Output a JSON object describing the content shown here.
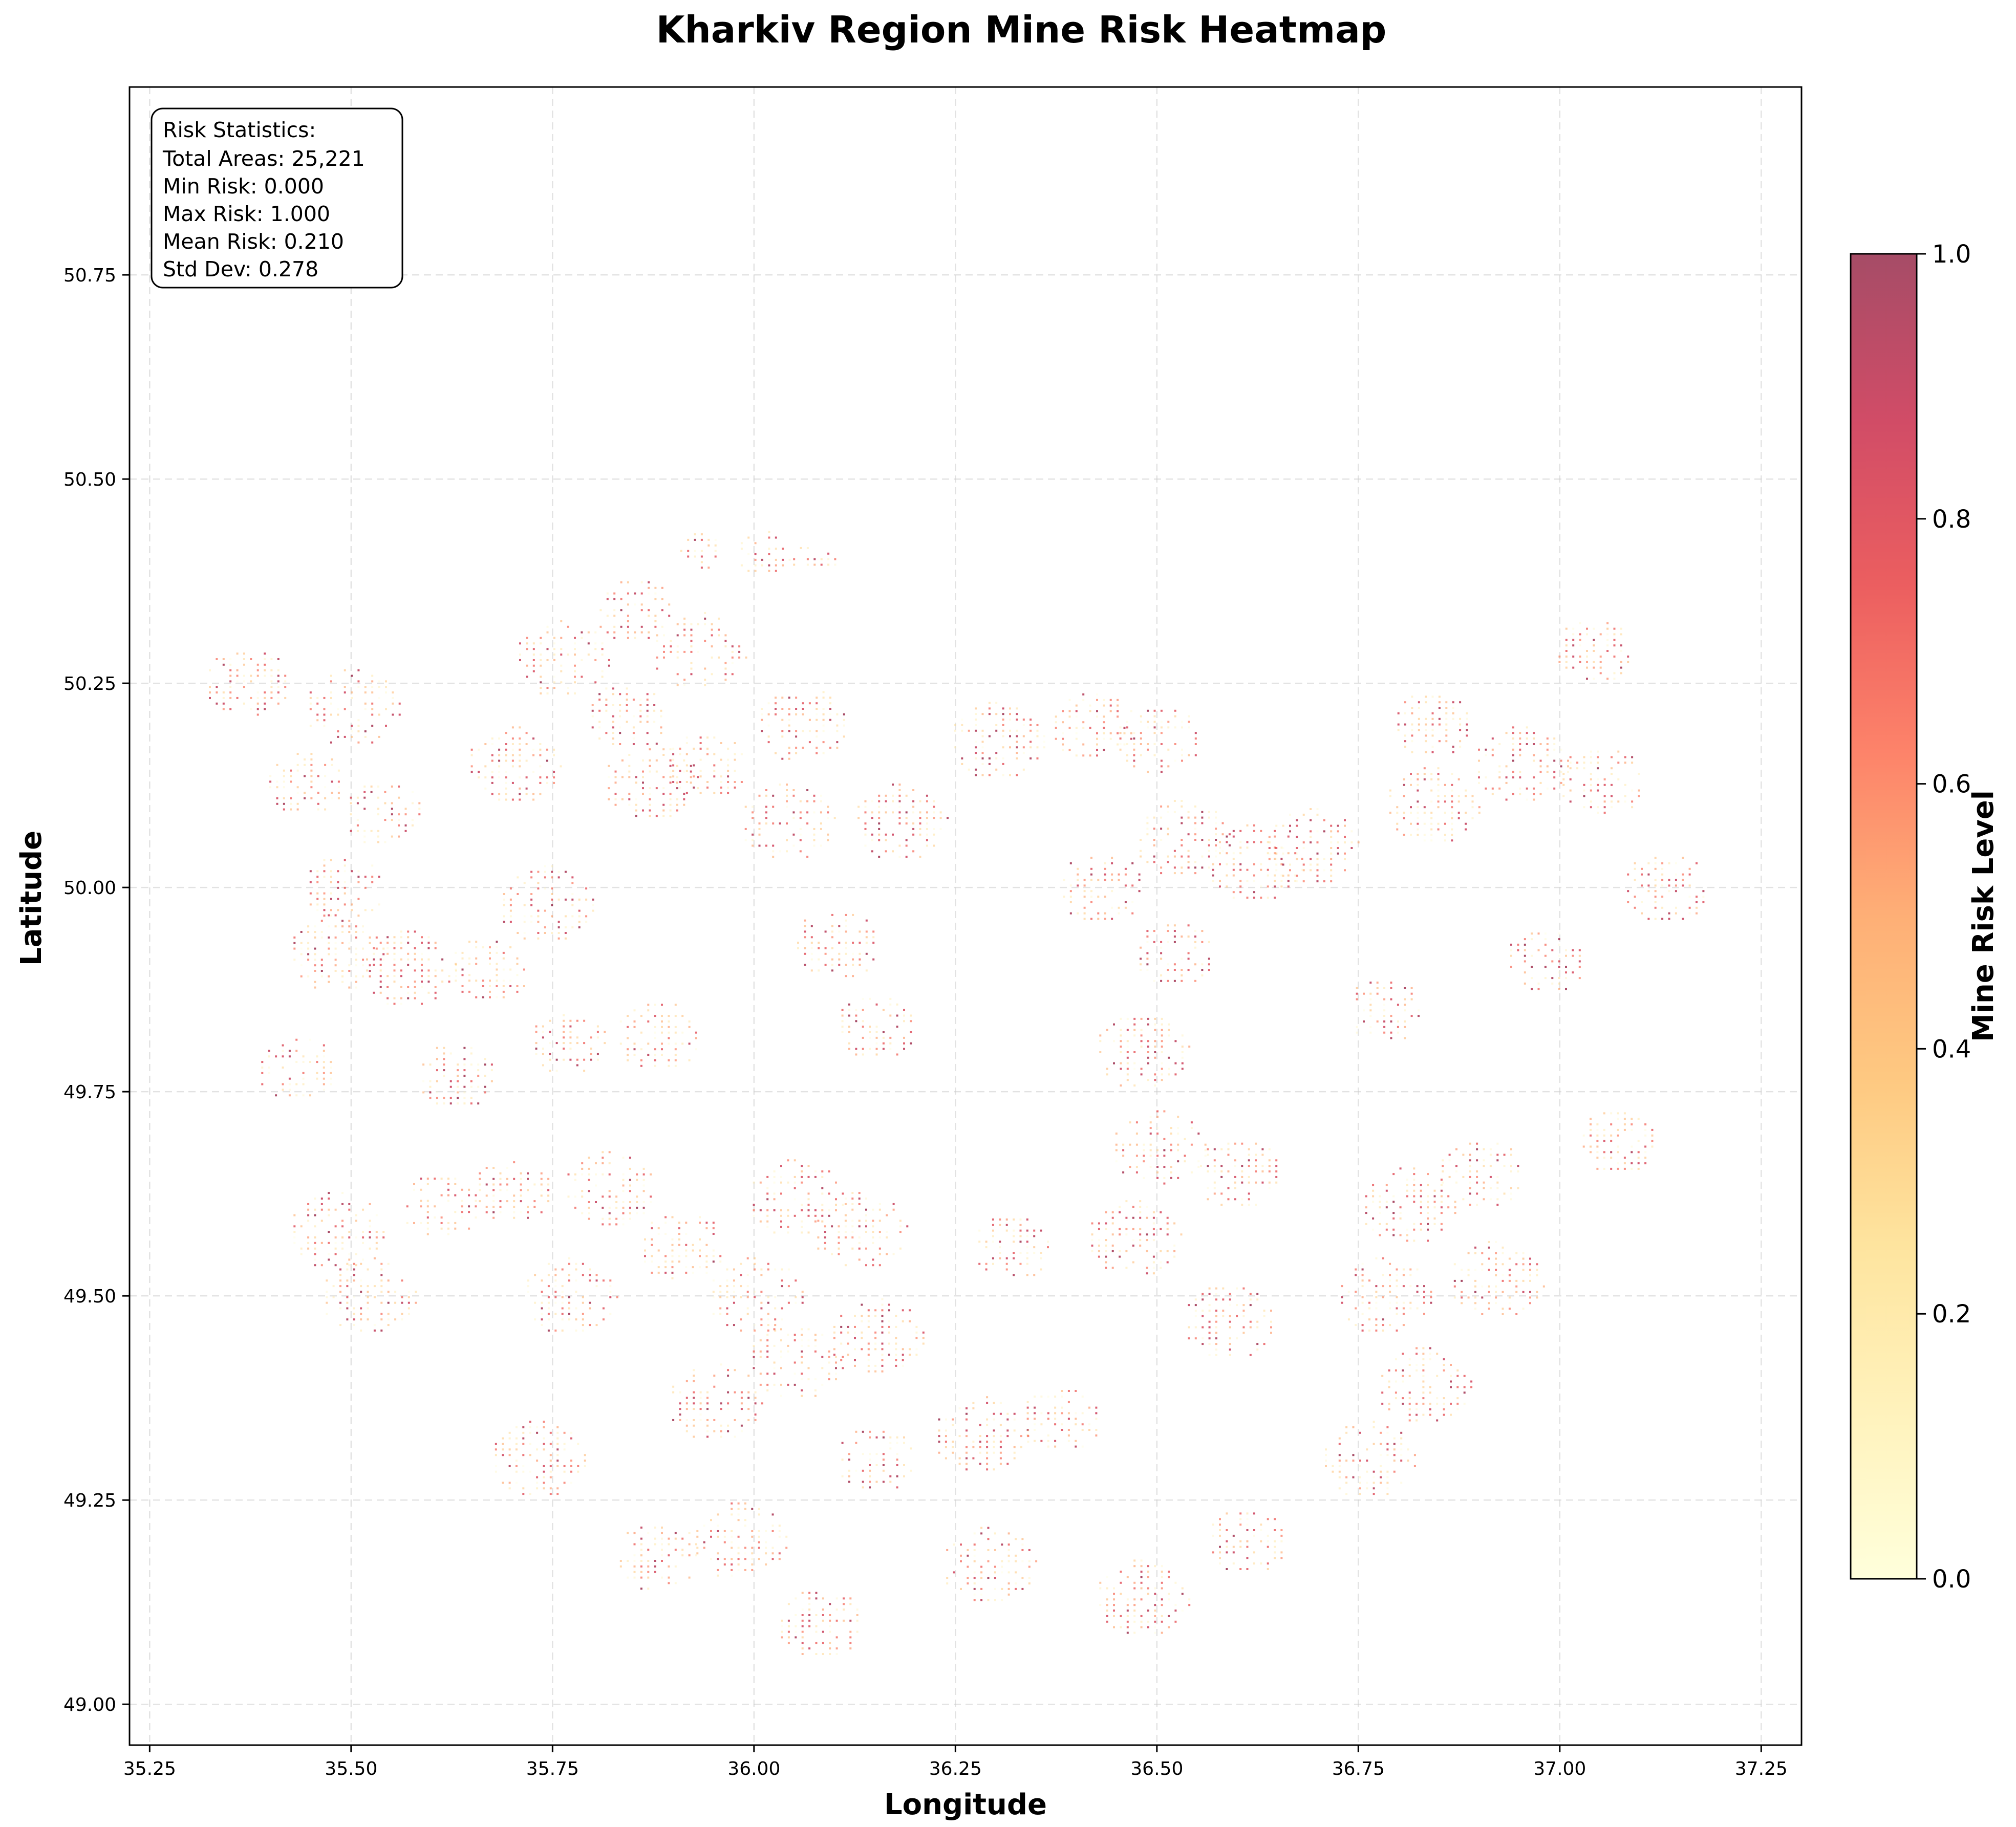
{
  "chart_data": {
    "type": "heatmap",
    "title": "Kharkiv Region Mine Risk Heatmap",
    "xlabel": "Longitude",
    "ylabel": "Latitude",
    "xlim": [
      35.225,
      37.3
    ],
    "ylim": [
      48.95,
      50.98
    ],
    "x_ticks": [
      "35.25",
      "35.50",
      "35.75",
      "36.00",
      "36.25",
      "36.50",
      "36.75",
      "37.00",
      "37.25"
    ],
    "y_ticks": [
      "49.00",
      "49.25",
      "49.50",
      "49.75",
      "50.00",
      "50.25",
      "50.50",
      "50.75"
    ],
    "grid": true,
    "colorbar": {
      "label": "Mine Risk Level",
      "range": [
        0,
        1
      ],
      "ticks": [
        "0.0",
        "0.2",
        "0.4",
        "0.6",
        "0.8",
        "1.0"
      ],
      "colormap": "YlOrRd",
      "colors": [
        "#ffffcc",
        "#ffeda0",
        "#fed976",
        "#feb24c",
        "#fd8d3c",
        "#fc4e2a",
        "#e31a1c",
        "#bd0026",
        "#800026"
      ],
      "alpha": 0.7
    },
    "statistics": {
      "heading": "Risk Statistics:",
      "total_areas": "Total Areas: 25,221",
      "min_risk": "Min Risk: 0.000",
      "max_risk": "Max Risk: 1.000",
      "mean_risk": "Mean Risk: 0.210",
      "std_dev": "Std Dev: 0.278"
    },
    "clusters": [
      {
        "lon": 35.37,
        "lat": 50.25,
        "r": 0.055
      },
      {
        "lon": 35.5,
        "lat": 50.22,
        "r": 0.06
      },
      {
        "lon": 35.44,
        "lat": 50.13,
        "r": 0.05
      },
      {
        "lon": 35.54,
        "lat": 50.09,
        "r": 0.05
      },
      {
        "lon": 35.49,
        "lat": 50.0,
        "r": 0.05
      },
      {
        "lon": 35.48,
        "lat": 49.92,
        "r": 0.06
      },
      {
        "lon": 35.57,
        "lat": 49.9,
        "r": 0.06
      },
      {
        "lon": 35.43,
        "lat": 49.78,
        "r": 0.05
      },
      {
        "lon": 35.63,
        "lat": 49.77,
        "r": 0.05
      },
      {
        "lon": 35.67,
        "lat": 49.9,
        "r": 0.05
      },
      {
        "lon": 35.74,
        "lat": 49.98,
        "r": 0.06
      },
      {
        "lon": 35.77,
        "lat": 49.81,
        "r": 0.05
      },
      {
        "lon": 35.88,
        "lat": 49.82,
        "r": 0.055
      },
      {
        "lon": 35.7,
        "lat": 50.15,
        "r": 0.06
      },
      {
        "lon": 35.76,
        "lat": 50.28,
        "r": 0.06
      },
      {
        "lon": 35.85,
        "lat": 50.34,
        "r": 0.05
      },
      {
        "lon": 35.93,
        "lat": 50.29,
        "r": 0.06
      },
      {
        "lon": 35.87,
        "lat": 50.13,
        "r": 0.06
      },
      {
        "lon": 35.84,
        "lat": 50.21,
        "r": 0.05
      },
      {
        "lon": 35.94,
        "lat": 50.15,
        "r": 0.05
      },
      {
        "lon": 36.06,
        "lat": 50.2,
        "r": 0.06
      },
      {
        "lon": 36.04,
        "lat": 50.08,
        "r": 0.06
      },
      {
        "lon": 36.18,
        "lat": 50.08,
        "r": 0.06
      },
      {
        "lon": 36.1,
        "lat": 49.93,
        "r": 0.055
      },
      {
        "lon": 36.15,
        "lat": 49.83,
        "r": 0.05
      },
      {
        "lon": 36.3,
        "lat": 50.18,
        "r": 0.06
      },
      {
        "lon": 36.42,
        "lat": 50.2,
        "r": 0.055
      },
      {
        "lon": 36.5,
        "lat": 50.18,
        "r": 0.055
      },
      {
        "lon": 36.43,
        "lat": 50.0,
        "r": 0.055
      },
      {
        "lon": 36.53,
        "lat": 50.06,
        "r": 0.06
      },
      {
        "lon": 36.52,
        "lat": 49.92,
        "r": 0.05
      },
      {
        "lon": 36.62,
        "lat": 50.03,
        "r": 0.06
      },
      {
        "lon": 36.69,
        "lat": 50.05,
        "r": 0.06
      },
      {
        "lon": 36.78,
        "lat": 49.85,
        "r": 0.05
      },
      {
        "lon": 36.84,
        "lat": 50.1,
        "r": 0.06
      },
      {
        "lon": 36.95,
        "lat": 50.15,
        "r": 0.06
      },
      {
        "lon": 36.84,
        "lat": 50.2,
        "r": 0.05
      },
      {
        "lon": 37.05,
        "lat": 50.13,
        "r": 0.055
      },
      {
        "lon": 37.13,
        "lat": 50.0,
        "r": 0.055
      },
      {
        "lon": 36.98,
        "lat": 49.91,
        "r": 0.05
      },
      {
        "lon": 37.04,
        "lat": 50.29,
        "r": 0.05
      },
      {
        "lon": 37.07,
        "lat": 49.69,
        "r": 0.05
      },
      {
        "lon": 36.48,
        "lat": 49.8,
        "r": 0.06
      },
      {
        "lon": 36.5,
        "lat": 49.68,
        "r": 0.06
      },
      {
        "lon": 36.6,
        "lat": 49.65,
        "r": 0.055
      },
      {
        "lon": 36.47,
        "lat": 49.57,
        "r": 0.06
      },
      {
        "lon": 36.32,
        "lat": 49.56,
        "r": 0.05
      },
      {
        "lon": 36.59,
        "lat": 49.47,
        "r": 0.06
      },
      {
        "lon": 36.81,
        "lat": 49.61,
        "r": 0.06
      },
      {
        "lon": 36.9,
        "lat": 49.65,
        "r": 0.055
      },
      {
        "lon": 36.78,
        "lat": 49.5,
        "r": 0.06
      },
      {
        "lon": 36.92,
        "lat": 49.52,
        "r": 0.06
      },
      {
        "lon": 36.83,
        "lat": 49.39,
        "r": 0.06
      },
      {
        "lon": 36.76,
        "lat": 49.3,
        "r": 0.06
      },
      {
        "lon": 36.61,
        "lat": 49.2,
        "r": 0.05
      },
      {
        "lon": 36.48,
        "lat": 49.13,
        "r": 0.06
      },
      {
        "lon": 36.38,
        "lat": 49.35,
        "r": 0.05
      },
      {
        "lon": 36.28,
        "lat": 49.33,
        "r": 0.06
      },
      {
        "lon": 36.29,
        "lat": 49.17,
        "r": 0.06
      },
      {
        "lon": 36.15,
        "lat": 49.3,
        "r": 0.05
      },
      {
        "lon": 36.08,
        "lat": 49.1,
        "r": 0.055
      },
      {
        "lon": 35.98,
        "lat": 49.2,
        "r": 0.06
      },
      {
        "lon": 35.88,
        "lat": 49.18,
        "r": 0.055
      },
      {
        "lon": 35.95,
        "lat": 49.37,
        "r": 0.06
      },
      {
        "lon": 36.05,
        "lat": 49.42,
        "r": 0.06
      },
      {
        "lon": 36.0,
        "lat": 49.5,
        "r": 0.06
      },
      {
        "lon": 36.15,
        "lat": 49.45,
        "r": 0.06
      },
      {
        "lon": 36.05,
        "lat": 49.62,
        "r": 0.06
      },
      {
        "lon": 36.13,
        "lat": 49.58,
        "r": 0.06
      },
      {
        "lon": 35.91,
        "lat": 49.56,
        "r": 0.055
      },
      {
        "lon": 35.82,
        "lat": 49.63,
        "r": 0.06
      },
      {
        "lon": 35.77,
        "lat": 49.5,
        "r": 0.06
      },
      {
        "lon": 35.7,
        "lat": 49.63,
        "r": 0.05
      },
      {
        "lon": 35.61,
        "lat": 49.61,
        "r": 0.05
      },
      {
        "lon": 35.48,
        "lat": 49.58,
        "r": 0.06
      },
      {
        "lon": 35.52,
        "lat": 49.5,
        "r": 0.06
      },
      {
        "lon": 35.73,
        "lat": 49.3,
        "r": 0.06
      },
      {
        "lon": 36.01,
        "lat": 50.41,
        "r": 0.035
      },
      {
        "lon": 35.93,
        "lat": 50.41,
        "r": 0.03
      },
      {
        "lon": 36.07,
        "lat": 50.4,
        "r": 0.03
      }
    ]
  }
}
